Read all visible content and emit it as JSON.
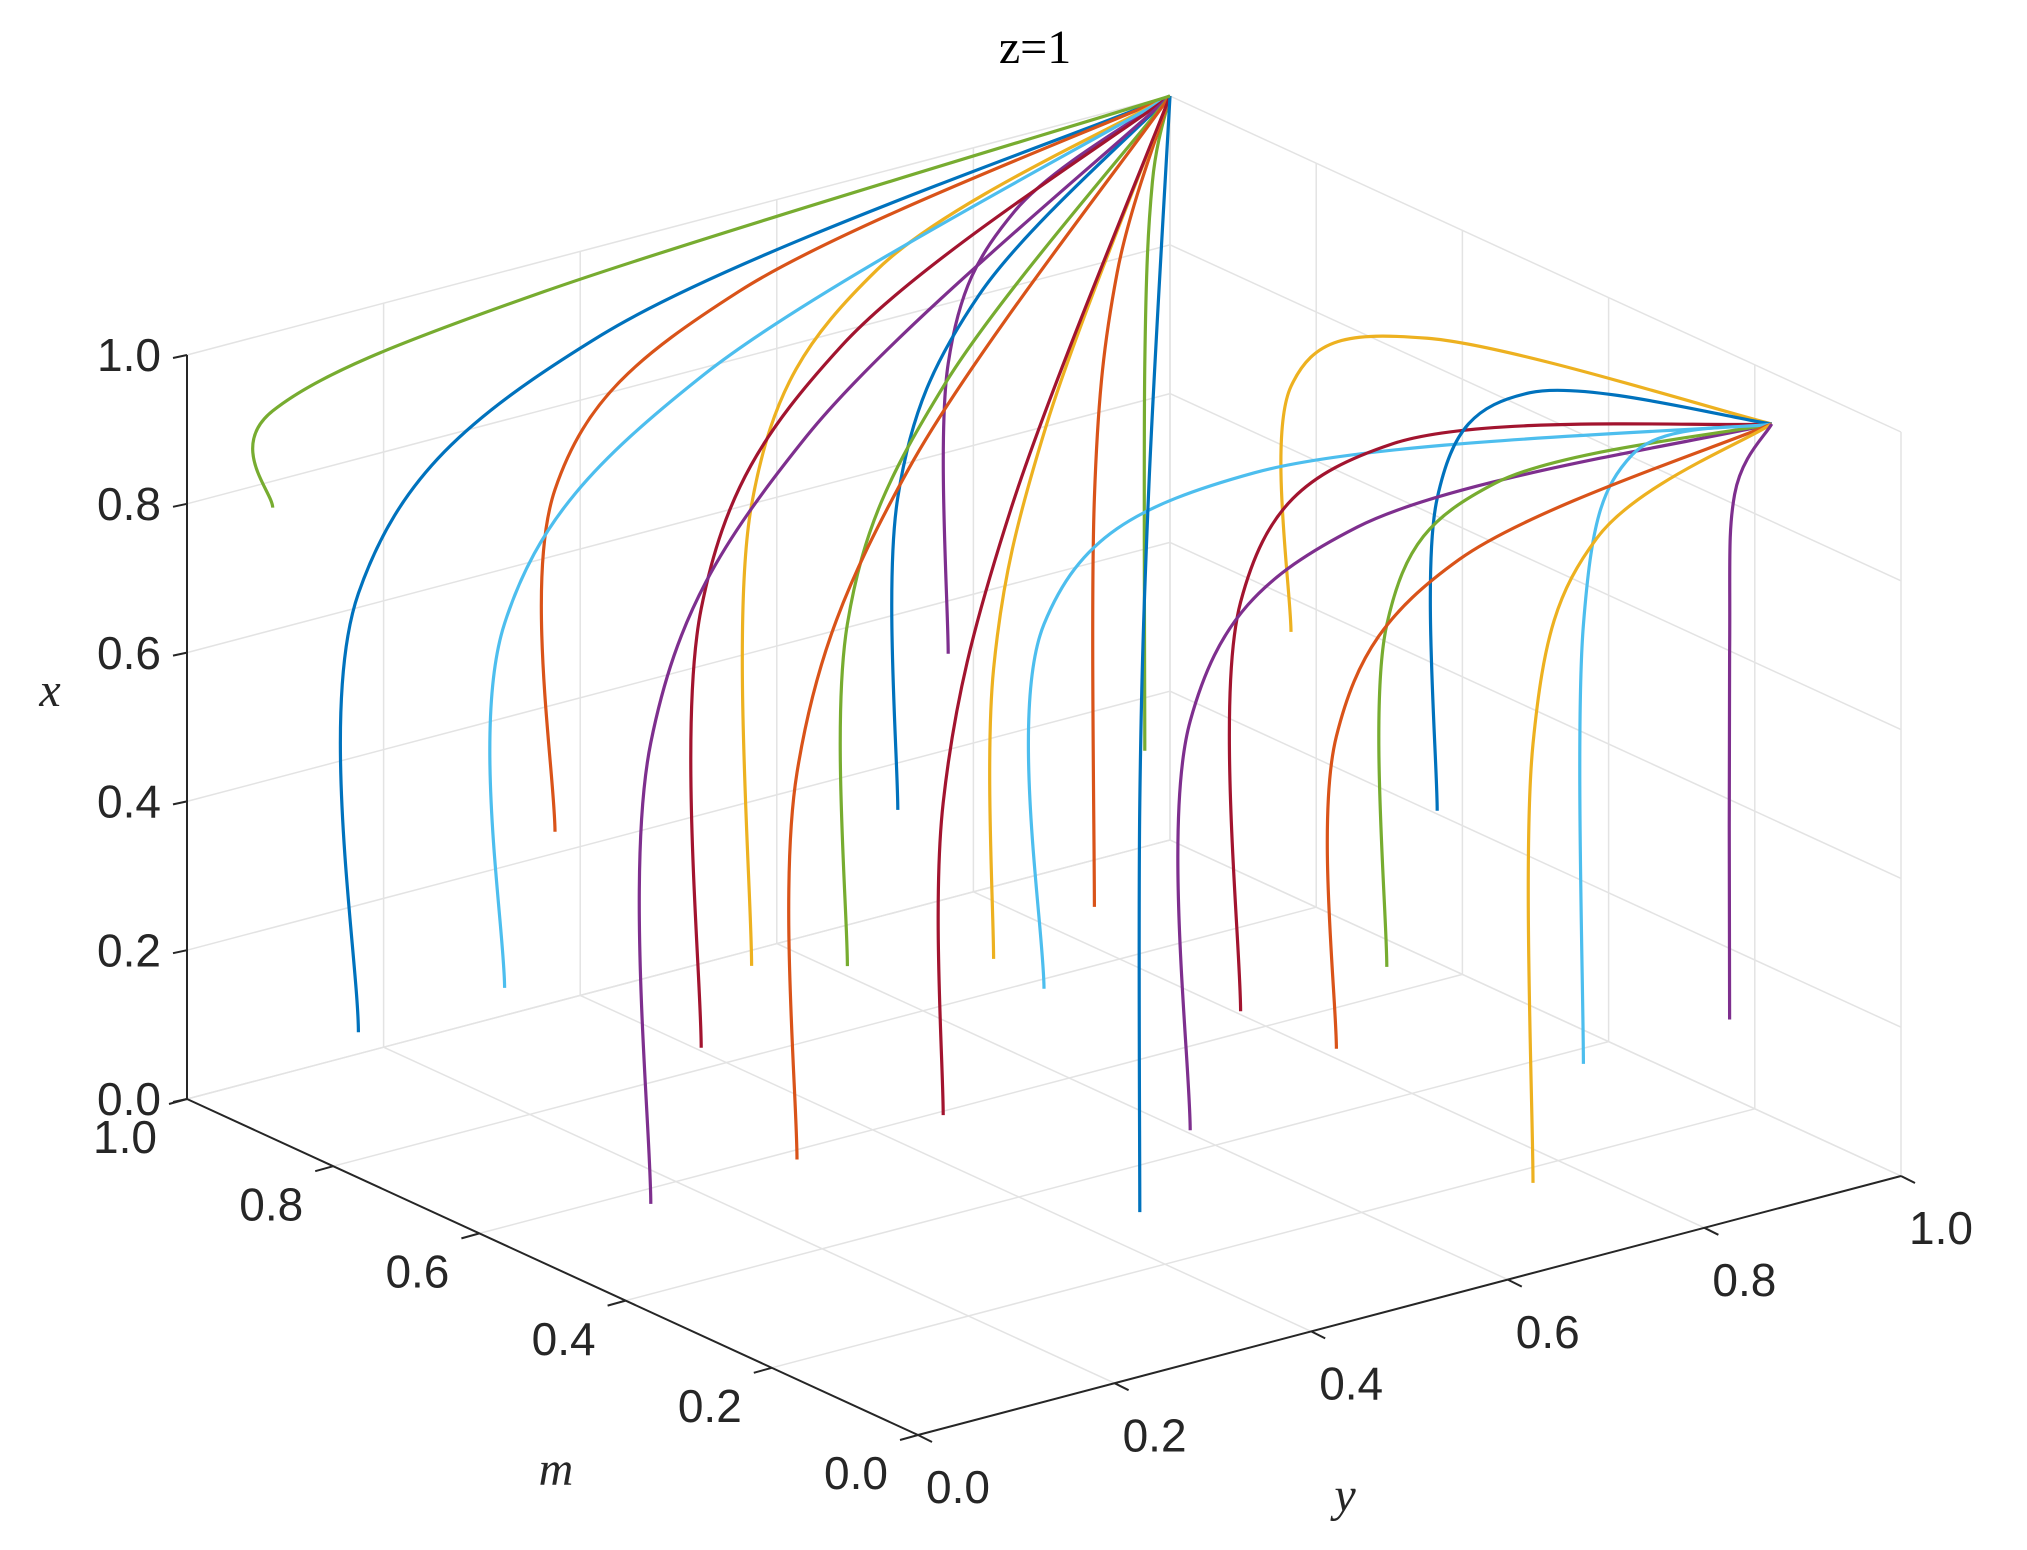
{
  "chart_data": {
    "type": "line3d",
    "title": "z=1",
    "x_label": "x",
    "m_label": "m",
    "y_label": "y",
    "xlim": [
      0,
      1
    ],
    "mlim": [
      0,
      1
    ],
    "ylim": [
      0,
      1
    ],
    "grid": true,
    "xticks": [
      {
        "value": 0,
        "label": "0.0"
      },
      {
        "value": 0.2,
        "label": "0.2"
      },
      {
        "value": 0.4,
        "label": "0.4"
      },
      {
        "value": 0.6,
        "label": "0.6"
      },
      {
        "value": 0.8,
        "label": "0.8"
      },
      {
        "value": 1,
        "label": "1.0"
      }
    ],
    "mticks": [
      {
        "value": 0,
        "label": "0.0"
      },
      {
        "value": 0.2,
        "label": "0.2"
      },
      {
        "value": 0.4,
        "label": "0.4"
      },
      {
        "value": 0.6,
        "label": "0.6"
      },
      {
        "value": 0.8,
        "label": "0.8"
      },
      {
        "value": 1,
        "label": "1.0"
      }
    ],
    "yticks": [
      {
        "value": 0,
        "label": "0.0"
      },
      {
        "value": 0.2,
        "label": "0.2"
      },
      {
        "value": 0.4,
        "label": "0.4"
      },
      {
        "value": 0.6,
        "label": "0.6"
      },
      {
        "value": 0.8,
        "label": "0.8"
      },
      {
        "value": 1,
        "label": "1.0"
      }
    ],
    "series": [
      {
        "color": "#0072BD",
        "m": [
          0.9,
          0.9,
          0.93,
          1
        ],
        "y": [
          0.1,
          0.1,
          0.37,
          1
        ],
        "x": [
          0.1,
          0.69,
          0.93,
          1
        ]
      },
      {
        "color": "#D95319",
        "m": [
          0.9,
          0.9,
          0.93,
          1
        ],
        "y": [
          0.3,
          0.3,
          0.51,
          1
        ],
        "x": [
          0.3,
          0.76,
          0.94,
          1
        ]
      },
      {
        "color": "#EDB120",
        "m": [
          0.9,
          0.9,
          0.93,
          1
        ],
        "y": [
          0.5,
          0.5,
          0.65,
          1
        ],
        "x": [
          0.05,
          0.67,
          0.92,
          1
        ]
      },
      {
        "color": "#7E2F8E",
        "m": [
          0.9,
          0.9,
          0.93,
          1
        ],
        "y": [
          0.7,
          0.7,
          0.79,
          1
        ],
        "x": [
          0.4,
          0.79,
          0.95,
          1
        ]
      },
      {
        "color": "#77AC30",
        "m": [
          0.9,
          0.9,
          0.93,
          1
        ],
        "y": [
          0.9,
          0.9,
          0.93,
          1
        ],
        "x": [
          0.2,
          0.72,
          0.94,
          1
        ]
      },
      {
        "color": "#4DBEEE",
        "m": [
          0.7,
          0.7,
          0.79,
          1
        ],
        "y": [
          0.1,
          0.1,
          0.37,
          1
        ],
        "x": [
          0.25,
          0.74,
          0.94,
          1
        ]
      },
      {
        "color": "#A2142F",
        "m": [
          0.7,
          0.7,
          0.79,
          1
        ],
        "y": [
          0.3,
          0.3,
          0.51,
          1
        ],
        "x": [
          0.1,
          0.69,
          0.93,
          1
        ]
      },
      {
        "color": "#0072BD",
        "m": [
          0.7,
          0.7,
          0.79,
          1
        ],
        "y": [
          0.5,
          0.5,
          0.65,
          1
        ],
        "x": [
          0.35,
          0.77,
          0.95,
          1
        ]
      },
      {
        "color": "#D95319",
        "m": [
          0.7,
          0.7,
          0.79,
          1
        ],
        "y": [
          0.7,
          0.7,
          0.79,
          1
        ],
        "x": [
          0.15,
          0.7,
          0.93,
          1
        ]
      },
      {
        "color": "#EDB120",
        "m": [
          0.7,
          0.7,
          0.54,
          0.15
        ],
        "y": [
          0.9,
          0.9,
          0.92,
          0.98
        ],
        "x": [
          0.45,
          0.78,
          0.91,
          0.95
        ]
      },
      {
        "color": "#7E2F8E",
        "m": [
          0.5,
          0.5,
          0.65,
          1
        ],
        "y": [
          0.1,
          0.1,
          0.37,
          1
        ],
        "x": [
          0.05,
          0.67,
          0.92,
          1
        ]
      },
      {
        "color": "#77AC30",
        "m": [
          0.5,
          0.5,
          0.65,
          1
        ],
        "y": [
          0.3,
          0.3,
          0.51,
          1
        ],
        "x": [
          0.3,
          0.76,
          0.94,
          1
        ]
      },
      {
        "color": "#4DBEEE",
        "m": [
          0.5,
          0.5,
          0.4,
          0.15
        ],
        "y": [
          0.5,
          0.5,
          0.64,
          0.98
        ],
        "x": [
          0.2,
          0.69,
          0.89,
          0.95
        ]
      },
      {
        "color": "#A2142F",
        "m": [
          0.5,
          0.5,
          0.4,
          0.15
        ],
        "y": [
          0.7,
          0.7,
          0.78,
          0.98
        ],
        "x": [
          0.1,
          0.65,
          0.88,
          0.95
        ]
      },
      {
        "color": "#0072BD",
        "m": [
          0.5,
          0.5,
          0.4,
          0.15
        ],
        "y": [
          0.9,
          0.9,
          0.92,
          0.98
        ],
        "x": [
          0.3,
          0.72,
          0.9,
          0.95
        ]
      },
      {
        "color": "#D95319",
        "m": [
          0.3,
          0.3,
          0.51,
          1
        ],
        "y": [
          0.1,
          0.1,
          0.37,
          1
        ],
        "x": [
          0.2,
          0.72,
          0.94,
          1
        ]
      },
      {
        "color": "#EDB120",
        "m": [
          0.3,
          0.3,
          0.51,
          1
        ],
        "y": [
          0.3,
          0.3,
          0.51,
          1
        ],
        "x": [
          0.4,
          0.79,
          0.95,
          1
        ]
      },
      {
        "color": "#7E2F8E",
        "m": [
          0.3,
          0.3,
          0.26,
          0.15
        ],
        "y": [
          0.5,
          0.5,
          0.64,
          0.98
        ],
        "x": [
          0.1,
          0.65,
          0.88,
          0.95
        ]
      },
      {
        "color": "#77AC30",
        "m": [
          0.3,
          0.3,
          0.26,
          0.15
        ],
        "y": [
          0.7,
          0.7,
          0.78,
          0.98
        ],
        "x": [
          0.25,
          0.71,
          0.89,
          0.95
        ]
      },
      {
        "color": "#4DBEEE",
        "m": [
          0.3,
          0.3,
          0.26,
          0.15
        ],
        "y": [
          0.9,
          0.9,
          0.92,
          0.98
        ],
        "x": [
          0.05,
          0.64,
          0.88,
          0.95
        ]
      },
      {
        "color": "#A2142F",
        "m": [
          0.1,
          0.1,
          0.37,
          1
        ],
        "y": [
          0.1,
          0.1,
          0.37,
          1
        ],
        "x": [
          0.35,
          0.77,
          0.95,
          1
        ]
      },
      {
        "color": "#0072BD",
        "m": [
          0.1,
          0.1,
          0.37,
          1
        ],
        "y": [
          0.3,
          0.3,
          0.51,
          1
        ],
        "x": [
          0.15,
          0.7,
          0.93,
          1
        ]
      },
      {
        "color": "#D95319",
        "m": [
          0.1,
          0.1,
          0.12,
          0.15
        ],
        "y": [
          0.5,
          0.5,
          0.64,
          0.98
        ],
        "x": [
          0.3,
          0.72,
          0.9,
          0.95
        ]
      },
      {
        "color": "#EDB120",
        "m": [
          0.1,
          0.1,
          0.12,
          0.15
        ],
        "y": [
          0.7,
          0.7,
          0.78,
          0.98
        ],
        "x": [
          0.05,
          0.64,
          0.88,
          0.95
        ]
      },
      {
        "color": "#7E2F8E",
        "m": [
          0.1,
          0.1,
          0.12,
          0.15
        ],
        "y": [
          0.9,
          0.9,
          0.92,
          0.98
        ],
        "x": [
          0.2,
          0.69,
          0.89,
          0.95
        ]
      },
      {
        "color": "#77AC30",
        "m": [
          0.95,
          0.95,
          0.97,
          1
        ],
        "y": [
          0.05,
          0.05,
          0.34,
          1
        ],
        "x": [
          0.8,
          0.93,
          0.98,
          1
        ]
      }
    ]
  }
}
